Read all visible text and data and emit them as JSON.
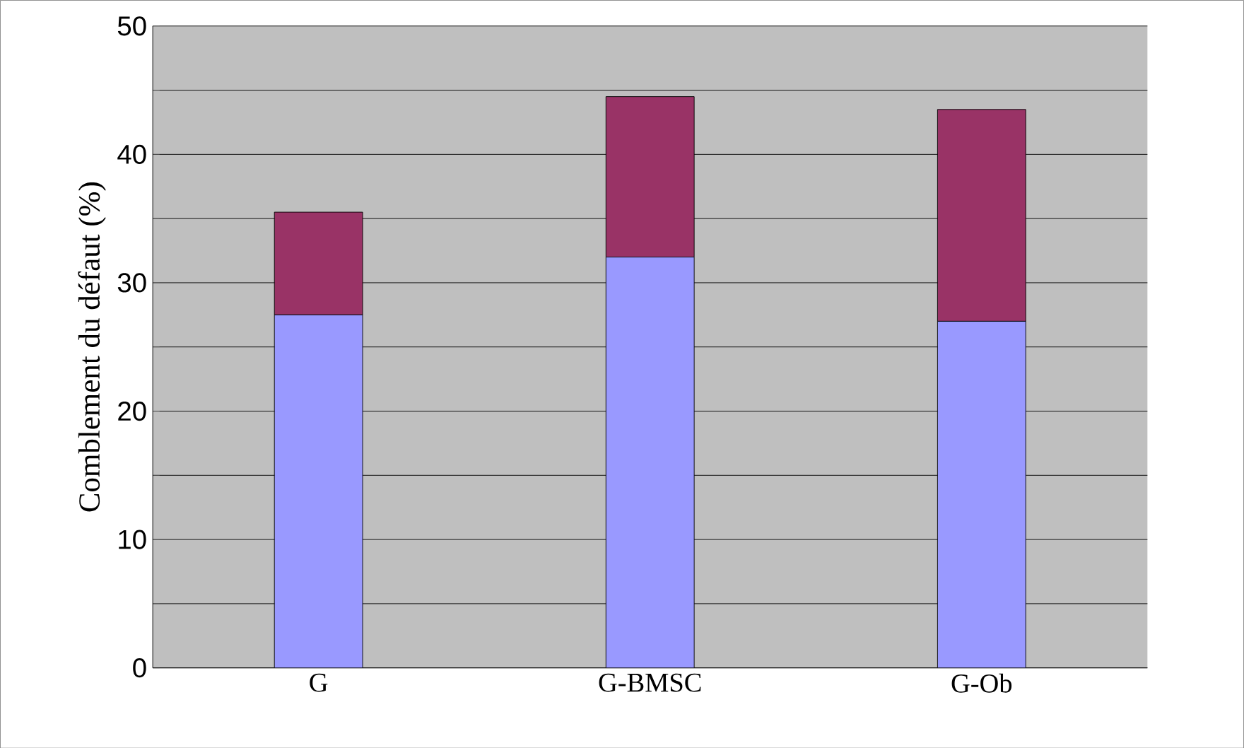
{
  "chart_data": {
    "type": "bar",
    "stacked": true,
    "ylabel": "Comblement du défaut (%)",
    "categories": [
      "G",
      "G-BMSC",
      "G-Ob"
    ],
    "series": [
      {
        "color": "#9999ff",
        "values": [
          27.5,
          32,
          27
        ]
      },
      {
        "color": "#993366",
        "values": [
          8,
          12.5,
          16.5
        ]
      }
    ],
    "ylim": [
      0,
      50
    ],
    "yticks": [
      0,
      {
        "value": 5,
        "label": null
      },
      10,
      {
        "value": 15,
        "label": null
      },
      20,
      {
        "value": 25,
        "label": null
      },
      30,
      {
        "value": 35,
        "label": null
      },
      40,
      {
        "value": 45,
        "label": null
      },
      50
    ],
    "grid": "y"
  }
}
